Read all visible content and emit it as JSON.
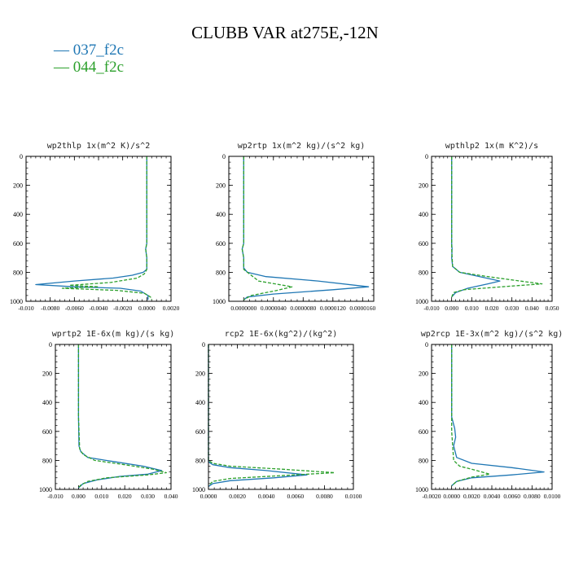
{
  "title": "CLUBB VAR at275E,-12N",
  "legend": [
    {
      "name": "037_f2c",
      "color": "#1f77b4"
    },
    {
      "name": "044_f2c",
      "color": "#2ca02c"
    }
  ],
  "chart_data": [
    {
      "type": "line",
      "title": "wp2thlp  1x(m^2 K)/s^2",
      "xlim": [
        -0.01,
        0.002
      ],
      "xticks": [
        -0.01,
        -0.008,
        -0.006,
        -0.004,
        -0.002,
        0.0,
        0.002
      ],
      "xtick_labels": [
        "-0.010",
        "-0.0080",
        "-0.0060",
        "-0.0040",
        "-0.0020",
        "0.0000",
        "0.0020"
      ],
      "ylim": [
        0,
        1000
      ],
      "yticks": [
        0,
        200,
        400,
        600,
        800,
        1000
      ],
      "ytick_labels": [
        "0",
        "200",
        "400",
        "600",
        "800",
        "1000"
      ],
      "y_inverted": true,
      "series": [
        {
          "name": "037_f2c",
          "color": "#1f77b4",
          "style": "solid",
          "x": [
            0.0,
            0.0,
            0.0,
            -0.0001,
            0.0,
            0.0,
            -0.0003,
            -0.0012,
            -0.0028,
            -0.006,
            -0.0092,
            -0.006,
            -0.0022,
            -0.0005,
            0.0001,
            0.0001
          ],
          "y": [
            0,
            300,
            600,
            640,
            700,
            780,
            800,
            820,
            840,
            860,
            885,
            900,
            910,
            930,
            960,
            990
          ]
        },
        {
          "name": "044_f2c",
          "color": "#2ca02c",
          "style": "dashed",
          "x": [
            0.0,
            0.0,
            0.0,
            -0.0001,
            0.0,
            0.0,
            -0.0002,
            -0.0008,
            -0.003,
            -0.0064,
            -0.004,
            -0.007,
            -0.0025,
            -0.0002,
            0.0003,
            0.0004
          ],
          "y": [
            0,
            300,
            600,
            640,
            700,
            780,
            810,
            840,
            870,
            890,
            900,
            910,
            925,
            945,
            970,
            990
          ]
        }
      ]
    },
    {
      "type": "line",
      "title": "wp2rtp  1x(m^2 kg)/(s^2 kg)",
      "xlim": [
        -2e-06,
        1.75e-05
      ],
      "xticks": [
        0.0,
        4e-06,
        8e-06,
        1.2e-05,
        1.6e-05
      ],
      "xtick_labels": [
        "0.0000000",
        "0.0000040",
        "0.0000080",
        "0.0000120",
        "0.0000160"
      ],
      "ylim": [
        0,
        1000
      ],
      "yticks": [
        0,
        200,
        400,
        600,
        800,
        1000
      ],
      "ytick_labels": [
        "0",
        "200",
        "400",
        "600",
        "800",
        "1000"
      ],
      "y_inverted": true,
      "series": [
        {
          "name": "037_f2c",
          "color": "#1f77b4",
          "style": "solid",
          "x": [
            0.0,
            0.0,
            0.0,
            -2e-07,
            0.0,
            0.0,
            5e-07,
            3e-06,
            1e-05,
            1.68e-05,
            1.2e-05,
            4e-06,
            5e-07,
            0.0
          ],
          "y": [
            0,
            300,
            600,
            640,
            700,
            770,
            800,
            830,
            860,
            900,
            920,
            950,
            970,
            990
          ]
        },
        {
          "name": "044_f2c",
          "color": "#2ca02c",
          "style": "dashed",
          "x": [
            0.0,
            0.0,
            0.0,
            -2e-07,
            0.0,
            0.0,
            2e-06,
            6.5e-06,
            4.5e-06,
            1e-06,
            0.0
          ],
          "y": [
            0,
            300,
            600,
            640,
            700,
            780,
            860,
            900,
            925,
            960,
            990
          ]
        }
      ]
    },
    {
      "type": "line",
      "title": "wpthlp2  1x(m K^2)/s",
      "xlim": [
        -0.01,
        0.05
      ],
      "xticks": [
        -0.01,
        0.0,
        0.01,
        0.02,
        0.03,
        0.04,
        0.05
      ],
      "xtick_labels": [
        "-0.010",
        "0.000",
        "0.010",
        "0.020",
        "0.030",
        "0.040",
        "0.050"
      ],
      "ylim": [
        0,
        1000
      ],
      "yticks": [
        0,
        200,
        400,
        600,
        800,
        1000
      ],
      "ytick_labels": [
        "0",
        "200",
        "400",
        "600",
        "800",
        "1000"
      ],
      "y_inverted": true,
      "series": [
        {
          "name": "037_f2c",
          "color": "#1f77b4",
          "style": "solid",
          "x": [
            0.0,
            0.0,
            0.0,
            0.0002,
            0.0,
            0.0005,
            0.004,
            0.014,
            0.024,
            0.018,
            0.008,
            0.002,
            0.0
          ],
          "y": [
            0,
            300,
            600,
            640,
            700,
            760,
            800,
            830,
            860,
            880,
            910,
            940,
            970
          ]
        },
        {
          "name": "044_f2c",
          "color": "#2ca02c",
          "style": "dashed",
          "x": [
            0.0,
            0.0,
            0.0,
            0.0,
            0.0005,
            0.004,
            0.018,
            0.034,
            0.045,
            0.025,
            0.006,
            0.001,
            0.0
          ],
          "y": [
            0,
            300,
            600,
            640,
            760,
            800,
            830,
            860,
            880,
            900,
            920,
            940,
            970
          ]
        }
      ]
    },
    {
      "type": "line",
      "title": "wprtp2  1E-6x(m kg)/(s kg)",
      "xlim": [
        -0.01,
        0.04
      ],
      "xticks": [
        -0.01,
        0.0,
        0.01,
        0.02,
        0.03,
        0.04
      ],
      "xtick_labels": [
        "-0.010",
        "0.000",
        "0.010",
        "0.020",
        "0.030",
        "0.040"
      ],
      "ylim": [
        0,
        1000
      ],
      "yticks": [
        0,
        200,
        400,
        600,
        800,
        1000
      ],
      "ytick_labels": [
        "0",
        "200",
        "400",
        "600",
        "800",
        "1000"
      ],
      "y_inverted": true,
      "series": [
        {
          "name": "037_f2c",
          "color": "#1f77b4",
          "style": "solid",
          "x": [
            0.0,
            0.0,
            0.0002,
            0.001,
            0.004,
            0.016,
            0.028,
            0.036,
            0.03,
            0.018,
            0.008,
            0.002,
            0.0
          ],
          "y": [
            0,
            500,
            700,
            740,
            780,
            810,
            840,
            870,
            895,
            910,
            935,
            960,
            990
          ]
        },
        {
          "name": "044_f2c",
          "color": "#2ca02c",
          "style": "dashed",
          "x": [
            0.0,
            0.0,
            0.0005,
            0.002,
            0.007,
            0.02,
            0.032,
            0.038,
            0.03,
            0.012,
            0.004,
            0.001,
            0.0
          ],
          "y": [
            0,
            500,
            720,
            760,
            800,
            830,
            860,
            885,
            900,
            920,
            945,
            970,
            990
          ]
        }
      ]
    },
    {
      "type": "line",
      "title": "rcp2  1E-6x(kg^2)/(kg^2)",
      "xlim": [
        0.0,
        0.01
      ],
      "xticks": [
        0.0,
        0.002,
        0.004,
        0.006,
        0.008,
        0.01
      ],
      "xtick_labels": [
        "0.0000",
        "0.0020",
        "0.0040",
        "0.0060",
        "0.0080",
        "0.0100"
      ],
      "ylim": [
        0,
        1000
      ],
      "yticks": [
        0,
        200,
        400,
        600,
        800,
        1000
      ],
      "ytick_labels": [
        "0",
        "200",
        "400",
        "600",
        "800",
        "1000"
      ],
      "y_inverted": true,
      "series": [
        {
          "name": "037_f2c",
          "color": "#1f77b4",
          "style": "solid",
          "x": [
            0.0,
            0.0,
            0.0003,
            0.0015,
            0.004,
            0.0068,
            0.0045,
            0.0015,
            0.0003,
            0.0
          ],
          "y": [
            0,
            810,
            830,
            850,
            870,
            900,
            920,
            940,
            960,
            980
          ]
        },
        {
          "name": "044_f2c",
          "color": "#2ca02c",
          "style": "dashed",
          "x": [
            0.0,
            0.0,
            0.0003,
            0.0015,
            0.005,
            0.0087,
            0.005,
            0.0015,
            0.0003,
            0.0
          ],
          "y": [
            0,
            800,
            820,
            840,
            860,
            885,
            905,
            925,
            945,
            975
          ]
        }
      ]
    },
    {
      "type": "line",
      "title": "wp2rcp  1E-3x(m^2 kg)/(s^2 kg)",
      "xlim": [
        -0.002,
        0.01
      ],
      "xticks": [
        -0.002,
        0.0,
        0.002,
        0.004,
        0.006,
        0.008,
        0.01
      ],
      "xtick_labels": [
        "-0.0020",
        "0.0000",
        "0.0020",
        "0.0040",
        "0.0060",
        "0.0080",
        "0.0100"
      ],
      "ylim": [
        0,
        1000
      ],
      "yticks": [
        0,
        200,
        400,
        600,
        800,
        1000
      ],
      "ytick_labels": [
        "0",
        "200",
        "400",
        "600",
        "800",
        "1000"
      ],
      "y_inverted": true,
      "series": [
        {
          "name": "037_f2c",
          "color": "#1f77b4",
          "style": "solid",
          "x": [
            0.0,
            0.0,
            0.0003,
            0.0004,
            0.0002,
            0.0005,
            0.002,
            0.006,
            0.0092,
            0.006,
            0.002,
            0.0005,
            0.0
          ],
          "y": [
            0,
            500,
            580,
            640,
            700,
            780,
            820,
            850,
            880,
            900,
            920,
            945,
            975
          ]
        },
        {
          "name": "044_f2c",
          "color": "#2ca02c",
          "style": "dashed",
          "x": [
            0.0,
            0.0,
            0.0001,
            0.0002,
            0.0008,
            0.0025,
            0.0038,
            0.002,
            0.0005,
            0.0
          ],
          "y": [
            0,
            600,
            700,
            800,
            840,
            870,
            895,
            915,
            945,
            975
          ]
        }
      ]
    }
  ]
}
